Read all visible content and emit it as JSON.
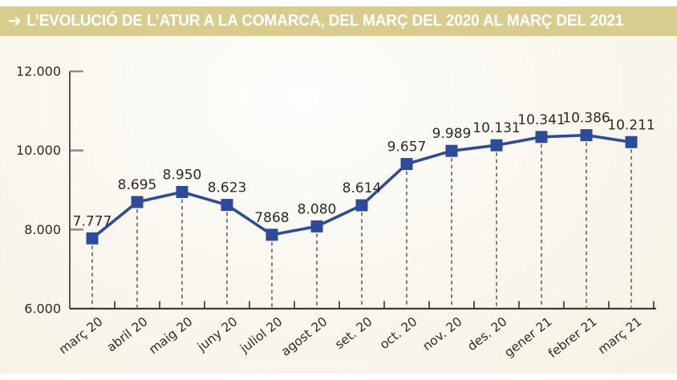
{
  "header": {
    "arrow": "➔",
    "title": "L’EVOLUCIÓ DE L’ATUR A LA COMARCA, DEL MARÇ DEL 2020 AL MARÇ DEL 2021",
    "bar_color": "#d8cd8e",
    "text_color": "#ffffff"
  },
  "chart_data": {
    "type": "line",
    "title": "L’evolució de l’atur a la comarca, del març del 2020 al març del 2021",
    "categories": [
      "març 20",
      "abril 20",
      "maig 20",
      "juny 20",
      "juliol 20",
      "agost 20",
      "set. 20",
      "oct. 20",
      "nov. 20",
      "des. 20",
      "gener 21",
      "febrer 21",
      "març 21"
    ],
    "values": [
      7777,
      8695,
      8950,
      8623,
      7868,
      8080,
      8614,
      9657,
      9989,
      10131,
      10341,
      10386,
      10211
    ],
    "value_labels": [
      "7.777",
      "8.695",
      "8.950",
      "8.623",
      "7868",
      "8.080",
      "8.614",
      "9.657",
      "9.989",
      "10.131",
      "10.341",
      "10.386",
      "10.211"
    ],
    "y_ticks": [
      6000,
      8000,
      10000,
      12000
    ],
    "y_tick_labels": [
      "6.000",
      "8.000",
      "10.000",
      "12.000"
    ],
    "ylim": [
      6000,
      12000
    ],
    "xlabel": "",
    "ylabel": "",
    "grid": false,
    "legend": "none",
    "line_color": "#2e4b9b",
    "marker": "square",
    "marker_color": "#2e4b9b",
    "drop_line_color": "#4c4c46",
    "axis_color": "#3c3c38",
    "tick_color": "#8f8f8f",
    "label_color": "#2b2a28",
    "dashed_drop_lines": true
  }
}
